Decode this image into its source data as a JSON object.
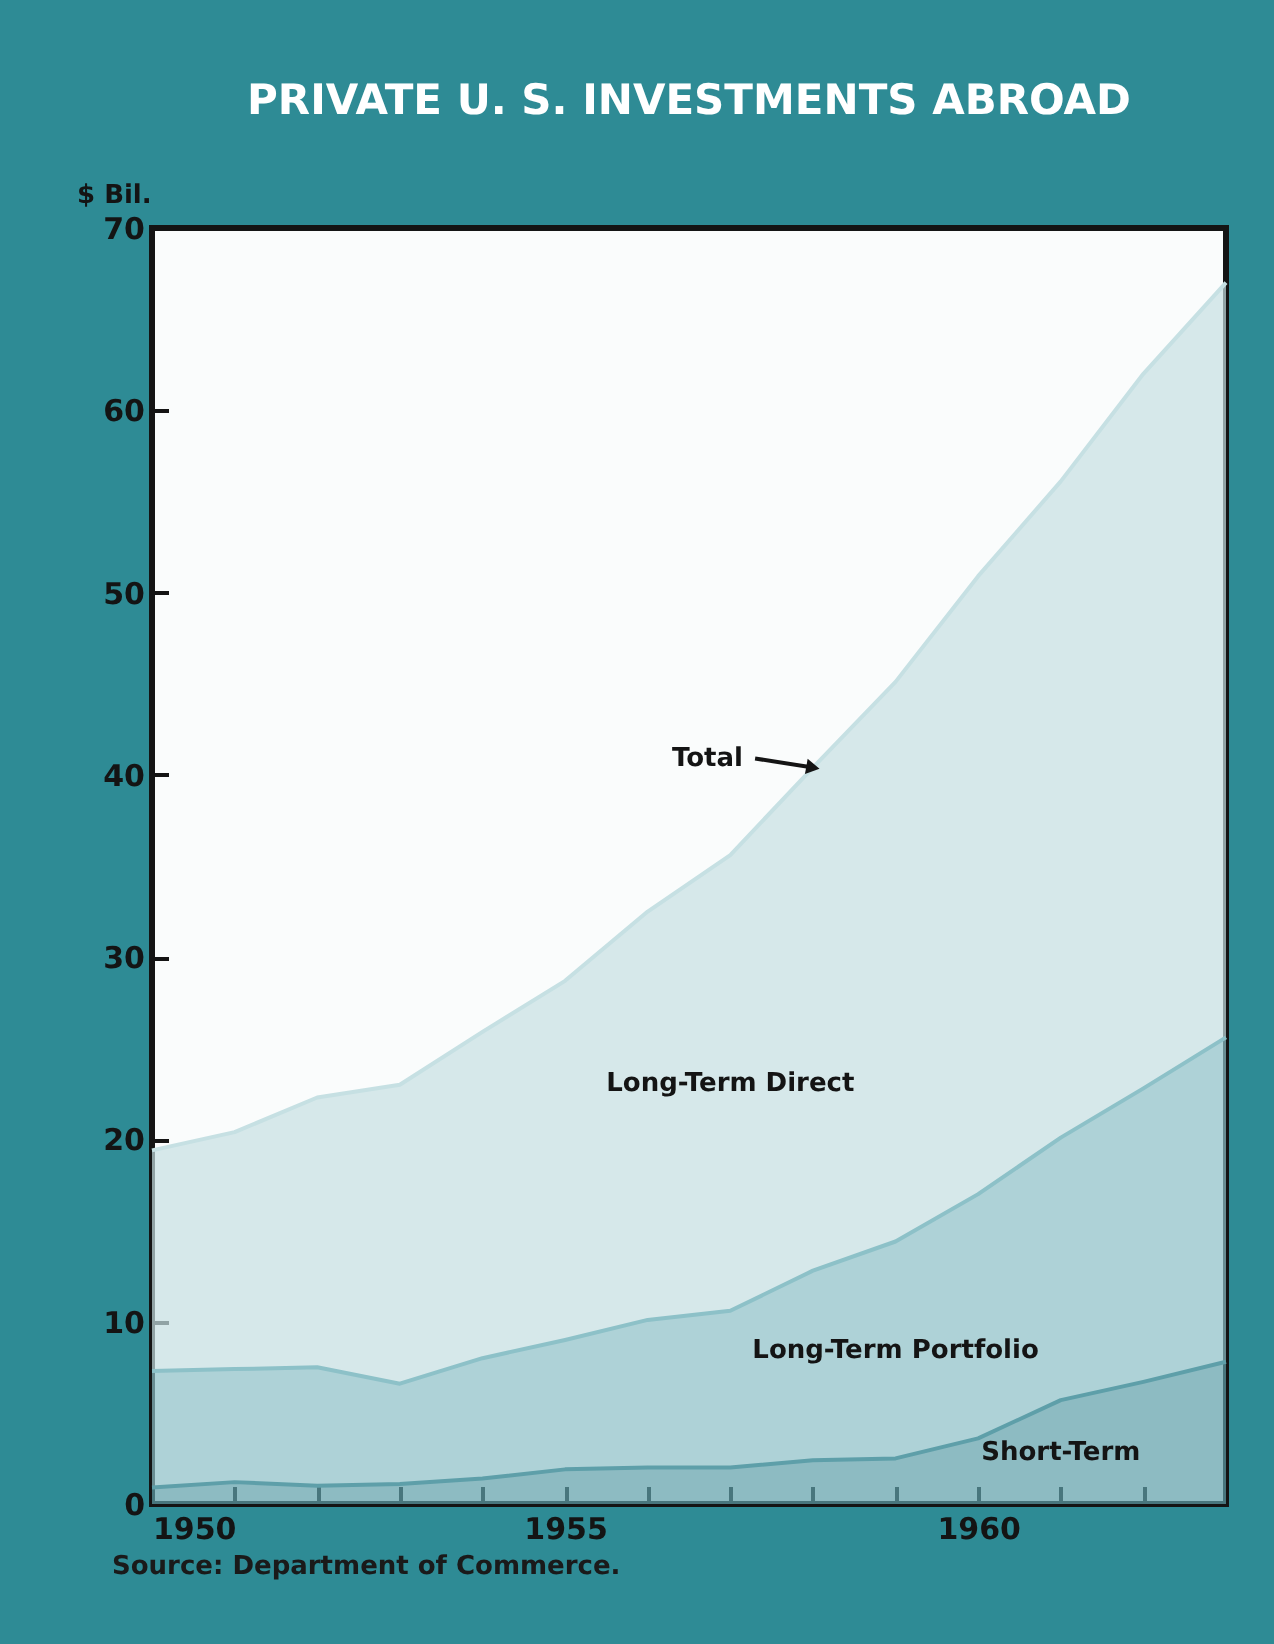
{
  "chart_data": {
    "type": "area",
    "stacked": true,
    "title": "PRIVATE U. S. INVESTMENTS ABROAD",
    "ylabel": "$ Bil.",
    "x": [
      1950,
      1951,
      1952,
      1953,
      1954,
      1955,
      1956,
      1957,
      1958,
      1959,
      1960,
      1961,
      1962,
      1963
    ],
    "series": [
      {
        "name": "Short-Term",
        "color": "#5e9fa9",
        "values": [
          0.9,
          1.2,
          1.0,
          1.1,
          1.4,
          1.9,
          2.0,
          2.0,
          2.4,
          2.5,
          3.6,
          5.7,
          6.7,
          7.8
        ]
      },
      {
        "name": "Long-Term Portfolio",
        "color": "#8dc1c8",
        "values": [
          6.4,
          6.2,
          6.5,
          5.5,
          6.6,
          7.1,
          8.1,
          8.6,
          10.4,
          11.9,
          13.4,
          14.4,
          16.1,
          17.8
        ]
      },
      {
        "name": "Long-Term Direct",
        "color": "#c6e0e3",
        "values": [
          12.1,
          13.0,
          14.8,
          16.4,
          17.9,
          19.7,
          22.4,
          25.0,
          27.6,
          30.7,
          33.9,
          36.0,
          39.2,
          41.4
        ]
      }
    ],
    "xlim": [
      1950,
      1963
    ],
    "xticks": [
      1950,
      {
        "value": 1951,
        "label": null
      },
      {
        "value": 1952,
        "label": null
      },
      {
        "value": 1953,
        "label": null
      },
      {
        "value": 1954,
        "label": null
      },
      1955,
      {
        "value": 1956,
        "label": null
      },
      {
        "value": 1957,
        "label": null
      },
      {
        "value": 1958,
        "label": null
      },
      {
        "value": 1959,
        "label": null
      },
      1960,
      {
        "value": 1961,
        "label": null
      },
      {
        "value": 1962,
        "label": null
      },
      {
        "value": 1963,
        "label": null
      }
    ],
    "ylim": [
      0,
      70
    ],
    "yticks": [
      0,
      10,
      20,
      30,
      40,
      50,
      60,
      70
    ],
    "grid": false,
    "legend": false,
    "annotations": [
      {
        "text": "Total",
        "x": 1958,
        "y": 40.4
      },
      "Source:   Department of Commerce."
    ]
  }
}
